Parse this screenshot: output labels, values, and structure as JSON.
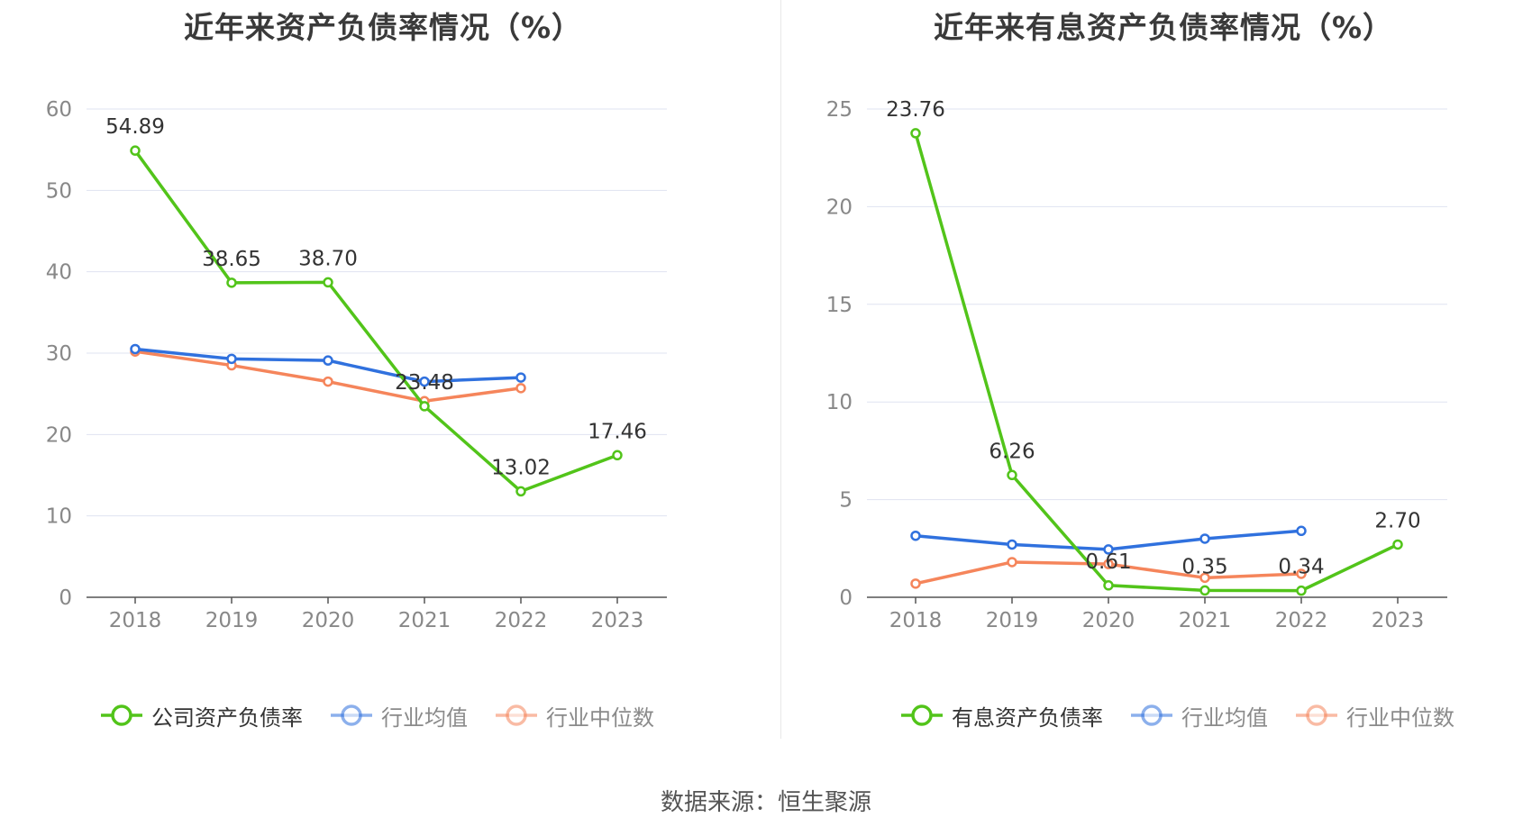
{
  "footer": {
    "source": "数据来源：恒生聚源"
  },
  "colors": {
    "company": "#52c41a",
    "industry_avg": "#3071de",
    "industry_median": "#f5855b",
    "grid": "#dfe3f1",
    "axis_text": "#888888"
  },
  "chart_data": [
    {
      "type": "line",
      "title": "近年来资产负债率情况（%）",
      "categories": [
        "2018",
        "2019",
        "2020",
        "2021",
        "2022",
        "2023"
      ],
      "ylim": [
        0,
        60
      ],
      "yticks": [
        0,
        10,
        20,
        30,
        40,
        50,
        60
      ],
      "grid": true,
      "legend_position": "bottom",
      "series": [
        {
          "name": "公司资产负债率",
          "key": "company",
          "values": [
            54.89,
            38.65,
            38.7,
            23.48,
            13.02,
            17.46
          ],
          "labels": [
            "54.89",
            "38.65",
            "38.70",
            "23.48",
            "13.02",
            "17.46"
          ]
        },
        {
          "name": "行业均值",
          "key": "industry_avg",
          "values": [
            30.5,
            29.3,
            29.1,
            26.5,
            27.0,
            null
          ]
        },
        {
          "name": "行业中位数",
          "key": "industry_median",
          "values": [
            30.2,
            28.5,
            26.5,
            24.1,
            25.7,
            null
          ]
        }
      ]
    },
    {
      "type": "line",
      "title": "近年来有息资产负债率情况（%）",
      "categories": [
        "2018",
        "2019",
        "2020",
        "2021",
        "2022",
        "2023"
      ],
      "ylim": [
        0,
        25
      ],
      "yticks": [
        0,
        5,
        10,
        15,
        20,
        25
      ],
      "grid": true,
      "legend_position": "bottom",
      "series": [
        {
          "name": "有息资产负债率",
          "key": "company",
          "values": [
            23.76,
            6.26,
            0.61,
            0.35,
            0.34,
            2.7
          ],
          "labels": [
            "23.76",
            "6.26",
            "0.61",
            "0.35",
            "0.34",
            "2.70"
          ]
        },
        {
          "name": "行业均值",
          "key": "industry_avg",
          "values": [
            3.15,
            2.7,
            2.45,
            3.0,
            3.4,
            null
          ]
        },
        {
          "name": "行业中位数",
          "key": "industry_median",
          "values": [
            0.7,
            1.8,
            1.7,
            1.0,
            1.2,
            null
          ]
        }
      ]
    }
  ]
}
